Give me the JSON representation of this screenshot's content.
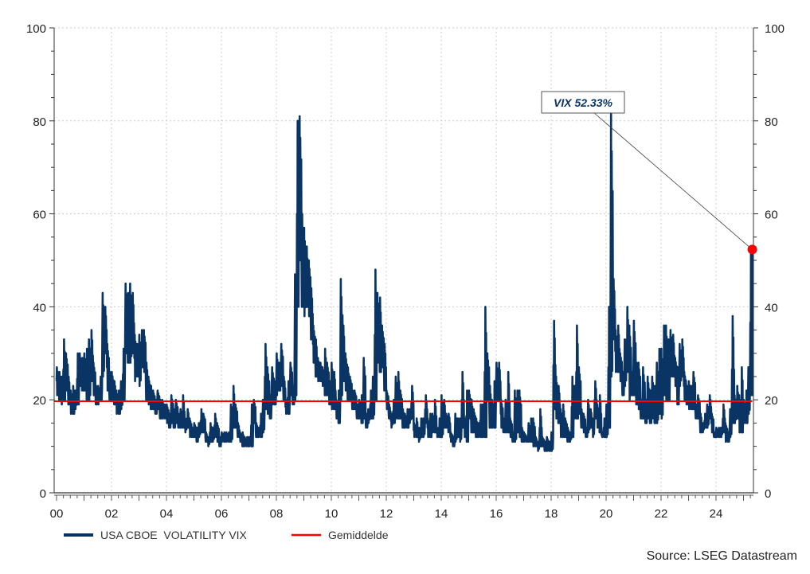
{
  "chart_data": {
    "type": "line",
    "title": "",
    "xlabel": "",
    "ylabel": "",
    "ylim": [
      0,
      100
    ],
    "xlim": [
      2000,
      2025.5
    ],
    "y_ticks": [
      "0",
      "20",
      "40",
      "60",
      "80",
      "100"
    ],
    "x_ticks": [
      "00",
      "02",
      "04",
      "06",
      "08",
      "10",
      "12",
      "14",
      "16",
      "18",
      "20",
      "22",
      "24"
    ],
    "grid": true,
    "legend_position": "bottom-left",
    "series": [
      {
        "name": "USA CBOE  VOLATILITY VIX",
        "color": "#0a3463",
        "frequency": "monthly range (high/low) starting Jan 2000",
        "monthly_high": [
          27,
          26,
          25,
          33,
          30,
          25,
          22,
          23,
          22,
          30,
          30,
          29,
          30,
          31,
          33,
          35,
          28,
          23,
          23,
          25,
          43,
          40,
          32,
          26,
          26,
          24,
          22,
          22,
          24,
          31,
          45,
          43,
          45,
          43,
          34,
          32,
          34,
          35,
          35,
          28,
          25,
          23,
          22,
          20,
          22,
          20,
          20,
          19,
          19,
          17,
          21,
          18,
          20,
          17,
          18,
          21,
          16,
          18,
          16,
          14,
          15,
          14,
          15,
          18,
          17,
          13,
          12,
          15,
          14,
          17,
          15,
          12,
          13,
          13,
          13,
          13,
          19,
          23,
          19,
          15,
          13,
          13,
          12,
          12,
          12,
          19,
          20,
          15,
          14,
          17,
          20,
          32,
          27,
          21,
          27,
          24,
          30,
          28,
          32,
          25,
          20,
          24,
          28,
          23,
          47,
          80,
          81,
          60,
          57,
          53,
          50,
          44,
          36,
          33,
          29,
          28,
          27,
          31,
          28,
          24,
          28,
          26,
          20,
          22,
          46,
          36,
          30,
          27,
          25,
          22,
          22,
          19,
          20,
          21,
          29,
          17,
          18,
          22,
          25,
          48,
          43,
          42,
          36,
          32,
          22,
          19,
          17,
          20,
          25,
          26,
          22,
          18,
          17,
          18,
          18,
          23,
          15,
          16,
          14,
          16,
          16,
          21,
          16,
          17,
          17,
          20,
          14,
          16,
          21,
          20,
          17,
          17,
          13,
          12,
          17,
          16,
          16,
          26,
          16,
          22,
          22,
          20,
          18,
          16,
          15,
          19,
          19,
          40,
          30,
          23,
          20,
          24,
          28,
          28,
          20,
          16,
          20,
          26,
          16,
          13,
          22,
          22,
          22,
          14,
          13,
          12,
          15,
          16,
          16,
          12,
          11,
          18,
          12,
          11,
          12,
          11,
          13,
          37,
          25,
          23,
          18,
          19,
          16,
          14,
          13,
          25,
          23,
          36,
          27,
          18,
          17,
          14,
          20,
          18,
          16,
          24,
          19,
          21,
          13,
          16,
          19,
          40,
          82,
          46,
          35,
          36,
          30,
          26,
          33,
          40,
          36,
          26,
          37,
          28,
          28,
          20,
          27,
          20,
          25,
          22,
          25,
          23,
          28,
          31,
          31,
          36,
          36,
          33,
          35,
          34,
          29,
          27,
          32,
          33,
          26,
          23,
          24,
          23,
          26,
          19,
          21,
          17,
          15,
          17,
          19,
          21,
          17,
          13,
          14,
          14,
          14,
          19,
          15,
          13,
          18,
          38,
          21,
          23,
          21,
          27,
          20,
          22,
          27,
          52.33
        ],
        "monthly_low": [
          21,
          20,
          19,
          20,
          22,
          19,
          17,
          17,
          18,
          19,
          23,
          22,
          22,
          20,
          20,
          24,
          21,
          19,
          19,
          20,
          25,
          30,
          22,
          20,
          20,
          19,
          17,
          17,
          18,
          20,
          30,
          28,
          28,
          30,
          24,
          25,
          23,
          27,
          26,
          20,
          19,
          18,
          18,
          17,
          18,
          16,
          16,
          16,
          15,
          14,
          15,
          14,
          15,
          14,
          14,
          14,
          13,
          14,
          12,
          12,
          12,
          11,
          12,
          13,
          13,
          11,
          10,
          11,
          11,
          12,
          11,
          10,
          11,
          11,
          11,
          11,
          11,
          14,
          14,
          12,
          11,
          10,
          10,
          10,
          10,
          10,
          15,
          12,
          12,
          12,
          13,
          18,
          17,
          16,
          19,
          19,
          21,
          22,
          23,
          20,
          17,
          17,
          21,
          19,
          20,
          40,
          50,
          40,
          38,
          40,
          38,
          33,
          28,
          25,
          24,
          24,
          23,
          21,
          21,
          19,
          18,
          18,
          16,
          15,
          20,
          24,
          22,
          20,
          20,
          18,
          18,
          16,
          16,
          15,
          16,
          14,
          15,
          16,
          16,
          20,
          28,
          26,
          27,
          22,
          18,
          16,
          14,
          15,
          16,
          16,
          16,
          14,
          14,
          14,
          15,
          16,
          12,
          12,
          11,
          12,
          12,
          15,
          12,
          12,
          13,
          13,
          12,
          12,
          12,
          14,
          14,
          13,
          11,
          10,
          11,
          12,
          11,
          14,
          12,
          11,
          16,
          13,
          13,
          12,
          12,
          12,
          12,
          12,
          20,
          14,
          14,
          14,
          20,
          20,
          14,
          13,
          13,
          13,
          12,
          11,
          11,
          13,
          12,
          11,
          11,
          11,
          11,
          11,
          10,
          10,
          9,
          10,
          10,
          9,
          9,
          9,
          9,
          18,
          16,
          15,
          12,
          12,
          12,
          11,
          11,
          12,
          16,
          16,
          17,
          14,
          13,
          12,
          13,
          14,
          12,
          16,
          14,
          13,
          12,
          12,
          12,
          14,
          25,
          33,
          26,
          26,
          24,
          21,
          23,
          26,
          20,
          21,
          21,
          19,
          18,
          16,
          16,
          15,
          16,
          15,
          16,
          15,
          15,
          17,
          16,
          21,
          20,
          20,
          25,
          25,
          23,
          19,
          23,
          25,
          20,
          19,
          18,
          18,
          18,
          16,
          16,
          13,
          13,
          14,
          14,
          16,
          13,
          12,
          12,
          12,
          12,
          13,
          11,
          11,
          12,
          15,
          15,
          16,
          13,
          13,
          15,
          15,
          17,
          21
        ]
      },
      {
        "name": "Gemiddelde",
        "color": "#ff0000",
        "value": 19.7
      }
    ],
    "annotation": {
      "text": "VIX 52.33%",
      "value": 52.33,
      "point_color": "#ff0000"
    },
    "source": "Source: LSEG Datastream"
  }
}
